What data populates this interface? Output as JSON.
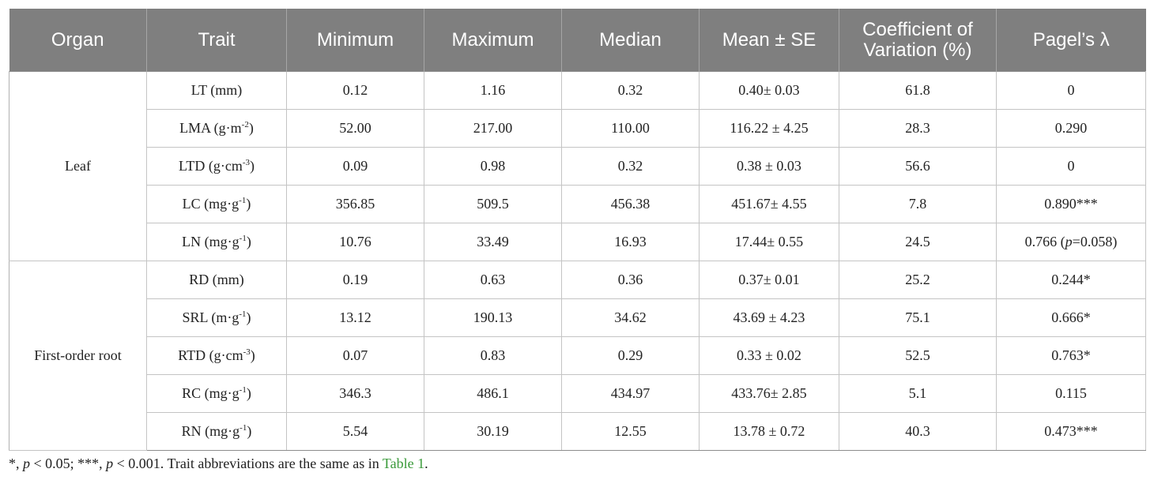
{
  "table": {
    "headers": [
      "Organ",
      "Trait",
      "Minimum",
      "Maximum",
      "Median",
      "Mean ± SE",
      "Coefficient of Variation (%)",
      "Pagel’s λ"
    ],
    "groups": [
      {
        "organ": "Leaf",
        "rows": [
          {
            "trait": "LT (mm)",
            "min": "0.12",
            "max": "1.16",
            "median": "0.32",
            "mean": "0.40± 0.03",
            "cv": "61.8",
            "lambda": "0"
          },
          {
            "trait": "LMA (g·m",
            "sup": "-2",
            "trait_end": ")",
            "min": "52.00",
            "max": "217.00",
            "median": "110.00",
            "mean": "116.22 ± 4.25",
            "cv": "28.3",
            "lambda": "0.290"
          },
          {
            "trait": "LTD (g·cm",
            "sup": "-3",
            "trait_end": ")",
            "min": "0.09",
            "max": "0.98",
            "median": "0.32",
            "mean": "0.38 ± 0.03",
            "cv": "56.6",
            "lambda": "0"
          },
          {
            "trait": "LC (mg·g",
            "sup": "-1",
            "trait_end": ")",
            "min": "356.85",
            "max": "509.5",
            "median": "456.38",
            "mean": "451.67± 4.55",
            "cv": "7.8",
            "lambda": "0.890***"
          },
          {
            "trait": "LN (mg·g",
            "sup": "-1",
            "trait_end": ")",
            "min": "10.76",
            "max": "33.49",
            "median": "16.93",
            "mean": "17.44± 0.55",
            "cv": "24.5",
            "lambda": "0.766 (",
            "lambda_italic": "p",
            "lambda_end": "=0.058)"
          }
        ]
      },
      {
        "organ": "First-order root",
        "rows": [
          {
            "trait": "RD (mm)",
            "min": "0.19",
            "max": "0.63",
            "median": "0.36",
            "mean": "0.37± 0.01",
            "cv": "25.2",
            "lambda": "0.244*"
          },
          {
            "trait": "SRL (m·g",
            "sup": "-1",
            "trait_end": ")",
            "min": "13.12",
            "max": "190.13",
            "median": "34.62",
            "mean": "43.69 ± 4.23",
            "cv": "75.1",
            "lambda": "0.666*"
          },
          {
            "trait": "RTD (g·cm",
            "sup": "-3",
            "trait_end": ")",
            "min": "0.07",
            "max": "0.83",
            "median": "0.29",
            "mean": "0.33 ± 0.02",
            "cv": "52.5",
            "lambda": "0.763*"
          },
          {
            "trait": "RC (mg·g",
            "sup": "-1",
            "trait_end": ")",
            "min": "346.3",
            "max": "486.1",
            "median": "434.97",
            "mean": "433.76± 2.85",
            "cv": "5.1",
            "lambda": "0.115"
          },
          {
            "trait": "RN (mg·g",
            "sup": "-1",
            "trait_end": ")",
            "min": "5.54",
            "max": "30.19",
            "median": "12.55",
            "mean": "13.78 ± 0.72",
            "cv": "40.3",
            "lambda": "0.473***"
          }
        ]
      }
    ]
  },
  "footnote": {
    "part1": "*, ",
    "p1": "p",
    "part2": " < 0.05; ***, ",
    "p2": "p",
    "part3": " < 0.001. Trait abbreviations are the same as in ",
    "link": "Table 1",
    "end": "."
  }
}
